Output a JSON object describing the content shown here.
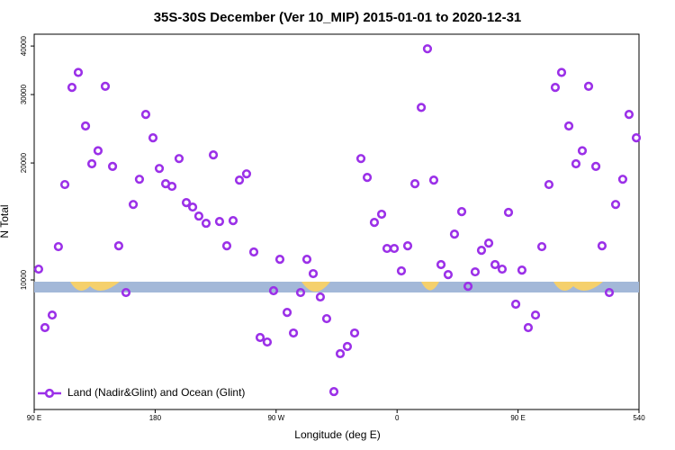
{
  "chart_data": {
    "type": "scatter",
    "title": "35S-30S December (Ver 10_MIP)   2015-01-01 to 2020-12-31",
    "x_label": "Longitude (deg E)",
    "y_label": "N Total",
    "log_y": true,
    "legend": "bottom-left",
    "xlim": [
      90,
      540
    ],
    "xticks": [
      {
        "value": 90,
        "label": "90 E"
      },
      180,
      {
        "value": 270,
        "label": "90 W"
      },
      {
        "value": 360,
        "label": "0"
      },
      {
        "value": 450,
        "label": "90 E"
      },
      540
    ],
    "ylim": [
      4640,
      42900
    ],
    "yticks": [
      10000,
      20000,
      30000,
      40000
    ],
    "series": [
      {
        "name": "Land (Nadir&Glint) and Ocean (Glint)",
        "color": "#9b30e8",
        "x": [
          93.3,
          98,
          103.4,
          108,
          112.8,
          118.1,
          122.8,
          128.2,
          132.9,
          137.5,
          142.9,
          148.3,
          152.9,
          158.3,
          163.7,
          168.3,
          173,
          178.4,
          183.1,
          187.8,
          192.5,
          197.8,
          203.2,
          207.9,
          212.5,
          217.9,
          223.3,
          227.9,
          233.3,
          238,
          242.7,
          248,
          253.4,
          258.1,
          263.4,
          268.1,
          272.8,
          278.2,
          282.9,
          288.2,
          292.9,
          297.6,
          302.9,
          307.6,
          313,
          317.7,
          323,
          328.4,
          333.1,
          337.8,
          343.1,
          348.5,
          352.5,
          357.9,
          363.2,
          367.9,
          373.3,
          378,
          382.6,
          387.3,
          392.7,
          398,
          402.7,
          408.1,
          412.8,
          418.1,
          422.8,
          428.2,
          432.9,
          438.2,
          442.9,
          448.3,
          452.9,
          457.6,
          463,
          467.7,
          473,
          477.7,
          482.4,
          487.8,
          493.1,
          497.8,
          502.5,
          507.9,
          512.5,
          517.9,
          522.6,
          527.9,
          532.6,
          538
        ],
        "values": [
          10660,
          7540,
          8120,
          12180,
          17600,
          31300,
          34200,
          24900,
          19900,
          21500,
          31500,
          19600,
          12240,
          9280,
          15640,
          18160,
          26670,
          23220,
          19360,
          17690,
          17410,
          20530,
          15810,
          15400,
          14600,
          13990,
          20980,
          14140,
          12240,
          14210,
          18070,
          18750,
          11800,
          7110,
          6920,
          9380,
          11300,
          8250,
          7300,
          9280,
          11300,
          10380,
          9040,
          7950,
          5160,
          6460,
          6740,
          7300,
          20530,
          18360,
          14060,
          14760,
          12050,
          12050,
          10550,
          12240,
          17690,
          27800,
          39350,
          18070,
          10950,
          10320,
          13120,
          14990,
          9630,
          10490,
          11920,
          12440,
          10950,
          10660,
          14920,
          8660,
          10600,
          7540,
          8120,
          12180,
          17600,
          31300,
          34200,
          24900,
          19900,
          21500,
          31500,
          19600,
          12240,
          9280,
          15640,
          18160,
          26670,
          23220
        ]
      }
    ]
  }
}
